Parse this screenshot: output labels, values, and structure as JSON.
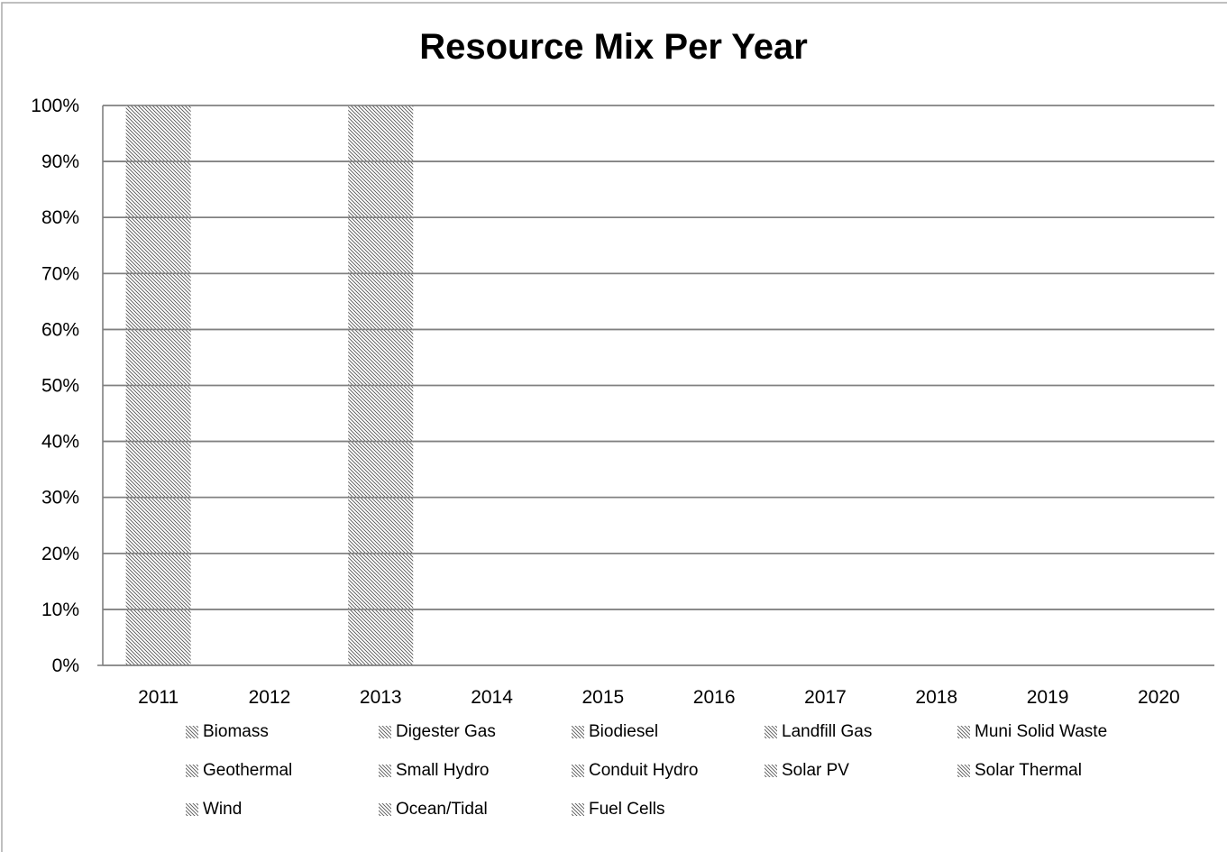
{
  "chart_data": {
    "type": "bar",
    "stacked": true,
    "title": "Resource Mix Per Year",
    "xlabel": "",
    "ylabel": "",
    "ylim": [
      0,
      100
    ],
    "y_ticks": [
      "0%",
      "10%",
      "20%",
      "30%",
      "40%",
      "50%",
      "60%",
      "70%",
      "80%",
      "90%",
      "100%"
    ],
    "categories": [
      "2011",
      "2012",
      "2013",
      "2014",
      "2015",
      "2016",
      "2017",
      "2018",
      "2019",
      "2020"
    ],
    "grid": true,
    "legend_position": "bottom",
    "series": [
      {
        "name": "Biomass",
        "values": [
          100,
          0,
          100,
          0,
          0,
          0,
          0,
          0,
          0,
          0
        ]
      },
      {
        "name": "Digester Gas",
        "values": [
          0,
          0,
          0,
          0,
          0,
          0,
          0,
          0,
          0,
          0
        ]
      },
      {
        "name": "Biodiesel",
        "values": [
          0,
          0,
          0,
          0,
          0,
          0,
          0,
          0,
          0,
          0
        ]
      },
      {
        "name": "Landfill Gas",
        "values": [
          0,
          0,
          0,
          0,
          0,
          0,
          0,
          0,
          0,
          0
        ]
      },
      {
        "name": "Muni Solid Waste",
        "values": [
          0,
          0,
          0,
          0,
          0,
          0,
          0,
          0,
          0,
          0
        ]
      },
      {
        "name": "Geothermal",
        "values": [
          0,
          0,
          0,
          0,
          0,
          0,
          0,
          0,
          0,
          0
        ]
      },
      {
        "name": "Small Hydro",
        "values": [
          0,
          0,
          0,
          0,
          0,
          0,
          0,
          0,
          0,
          0
        ]
      },
      {
        "name": "Conduit Hydro",
        "values": [
          0,
          0,
          0,
          0,
          0,
          0,
          0,
          0,
          0,
          0
        ]
      },
      {
        "name": "Solar PV",
        "values": [
          0,
          0,
          0,
          0,
          0,
          0,
          0,
          0,
          0,
          0
        ]
      },
      {
        "name": "Solar Thermal",
        "values": [
          0,
          0,
          0,
          0,
          0,
          0,
          0,
          0,
          0,
          0
        ]
      },
      {
        "name": "Wind",
        "values": [
          0,
          0,
          0,
          0,
          0,
          0,
          0,
          0,
          0,
          0
        ]
      },
      {
        "name": "Ocean/Tidal",
        "values": [
          0,
          0,
          0,
          0,
          0,
          0,
          0,
          0,
          0,
          0
        ]
      },
      {
        "name": "Fuel Cells",
        "values": [
          0,
          0,
          0,
          0,
          0,
          0,
          0,
          0,
          0,
          0
        ]
      }
    ],
    "colors": {
      "frame": "#999999",
      "grid": "#808080",
      "axis": "#808080",
      "hatch": "#555555"
    }
  }
}
